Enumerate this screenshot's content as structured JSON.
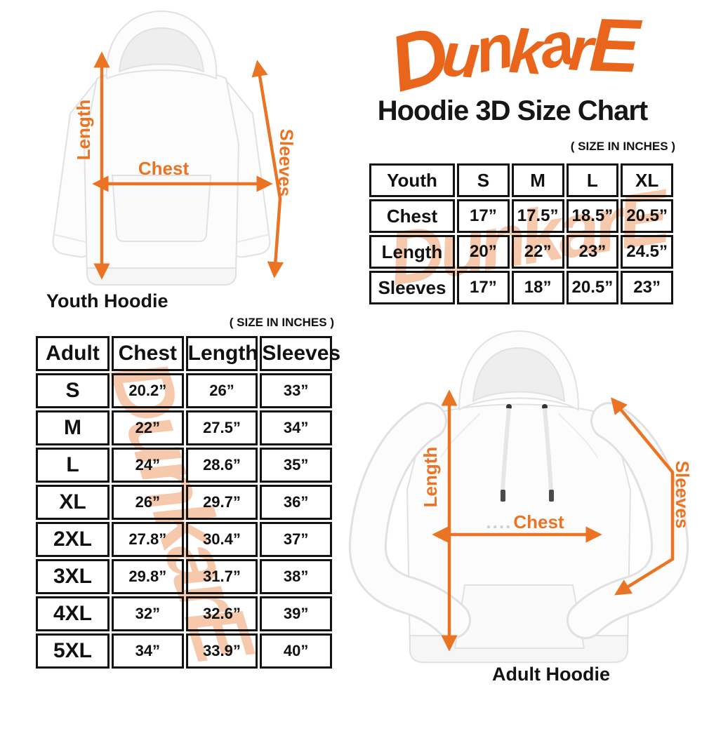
{
  "brand": {
    "logo_text": "DunkarE",
    "logo_color": "#E8651B",
    "watermark_color": "#F6C9AC",
    "arrow_color": "#EA7423"
  },
  "header": {
    "title": "Hoodie 3D Size Chart"
  },
  "youth_section": {
    "size_note": "( SIZE IN INCHES )",
    "table": {
      "header": [
        "Youth",
        "S",
        "M",
        "L",
        "XL"
      ],
      "rows": [
        [
          "Chest",
          "17”",
          "17.5”",
          "18.5”",
          "20.5”"
        ],
        [
          "Length",
          "20”",
          "22”",
          "23”",
          "24.5”"
        ],
        [
          "Sleeves",
          "17”",
          "18”",
          "20.5”",
          "23”"
        ]
      ]
    },
    "figure": {
      "caption": "Youth Hoodie",
      "length_label": "Length",
      "chest_label": "Chest",
      "sleeves_label": "Sleeves"
    }
  },
  "adult_section": {
    "size_note": "( SIZE IN INCHES )",
    "table": {
      "header": [
        "Adult",
        "Chest",
        "Length",
        "Sleeves"
      ],
      "rows": [
        [
          "S",
          "20.2”",
          "26”",
          "33”"
        ],
        [
          "M",
          "22”",
          "27.5”",
          "34”"
        ],
        [
          "L",
          "24”",
          "28.6”",
          "35”"
        ],
        [
          "XL",
          "26”",
          "29.7”",
          "36”"
        ],
        [
          "2XL",
          "27.8”",
          "30.4”",
          "37”"
        ],
        [
          "3XL",
          "29.8”",
          "31.7”",
          "38”"
        ],
        [
          "4XL",
          "32”",
          "32.6”",
          "39”"
        ],
        [
          "5XL",
          "34”",
          "33.9”",
          "40”"
        ]
      ]
    },
    "figure": {
      "caption": "Adult Hoodie",
      "length_label": "Length",
      "chest_label": "Chest",
      "chest_dots": "....",
      "sleeves_label": "Sleeves"
    }
  },
  "chart_data": [
    {
      "type": "table",
      "title": "Youth Hoodie sizes (inches)",
      "columns": [
        "S",
        "M",
        "L",
        "XL"
      ],
      "rows": {
        "Chest": [
          17,
          17.5,
          18.5,
          20.5
        ],
        "Length": [
          20,
          22,
          23,
          24.5
        ],
        "Sleeves": [
          17,
          18,
          20.5,
          23
        ]
      }
    },
    {
      "type": "table",
      "title": "Adult Hoodie sizes (inches)",
      "columns": [
        "Chest",
        "Length",
        "Sleeves"
      ],
      "rows": {
        "S": [
          20.2,
          26,
          33
        ],
        "M": [
          22,
          27.5,
          34
        ],
        "L": [
          24,
          28.6,
          35
        ],
        "XL": [
          26,
          29.7,
          36
        ],
        "2XL": [
          27.8,
          30.4,
          37
        ],
        "3XL": [
          29.8,
          31.7,
          38
        ],
        "4XL": [
          32,
          32.6,
          39
        ],
        "5XL": [
          34,
          33.9,
          40
        ]
      }
    }
  ]
}
